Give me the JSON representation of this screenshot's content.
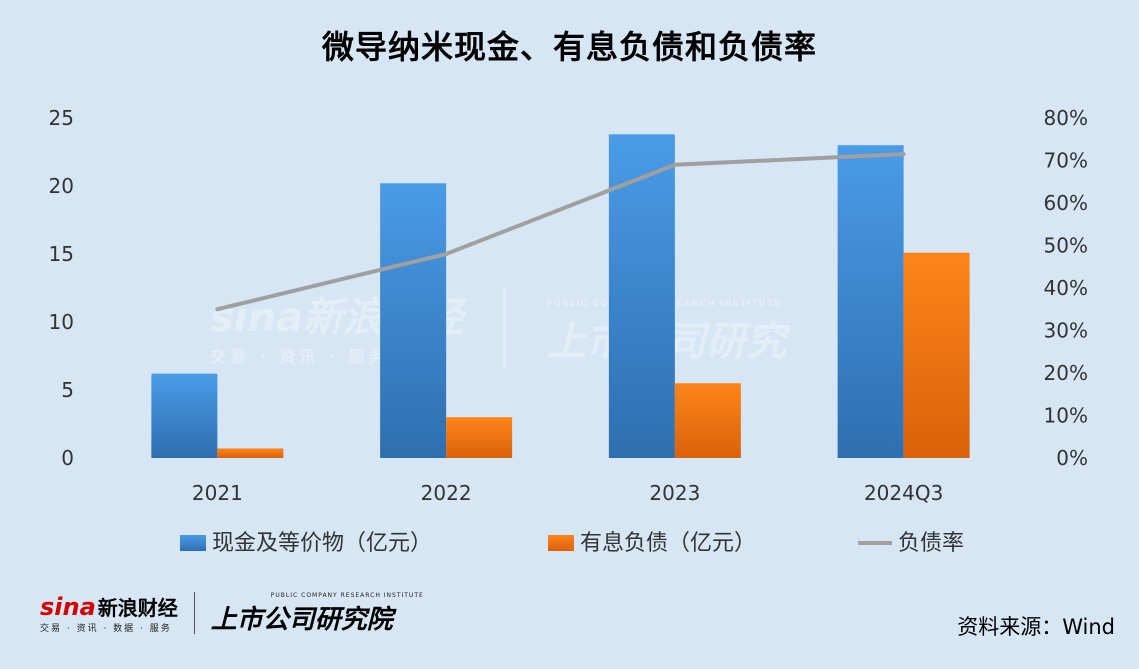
{
  "title": "微导纳米现金、有息负债和负债率",
  "source": "资料来源：Wind",
  "watermark": {
    "brand": "sina新浪财经",
    "brand_sub": "交易 · 资讯 · 服务",
    "research": "上市公司研究",
    "research_sub": "PUBLIC COMPANY RESEARCH INSTITUTE"
  },
  "footer": {
    "sina_logo": "sina",
    "sina_name": "新浪财经",
    "sina_sub": "交易 · 资讯 · 数据 · 服务",
    "research_name": "上市公司研究院",
    "research_sub": "PUBLIC COMPANY RESEARCH INSTITUTE"
  },
  "colors": {
    "background": "#d6e6f4",
    "cash": "#3a86d6",
    "debt": "#f57a10",
    "ratio": "#a0a0a0"
  },
  "chart_data": {
    "type": "bar",
    "categories": [
      "2021",
      "2022",
      "2023",
      "2024Q3"
    ],
    "series": [
      {
        "name": "现金及等价物（亿元）",
        "type": "bar",
        "axis": "left",
        "values": [
          6.2,
          20.2,
          23.8,
          23.0
        ]
      },
      {
        "name": "有息负债（亿元）",
        "type": "bar",
        "axis": "left",
        "values": [
          0.7,
          3.0,
          5.5,
          15.1
        ]
      },
      {
        "name": "负债率",
        "type": "line",
        "axis": "right",
        "values": [
          0.35,
          0.48,
          0.69,
          0.715
        ]
      }
    ],
    "ylim": [
      0,
      25
    ],
    "yticks": [
      0,
      5,
      10,
      15,
      20,
      25
    ],
    "y2lim": [
      0,
      0.8
    ],
    "y2ticks": [
      "0%",
      "10%",
      "20%",
      "30%",
      "40%",
      "50%",
      "60%",
      "70%",
      "80%"
    ],
    "legend_position": "bottom",
    "grid": false
  }
}
